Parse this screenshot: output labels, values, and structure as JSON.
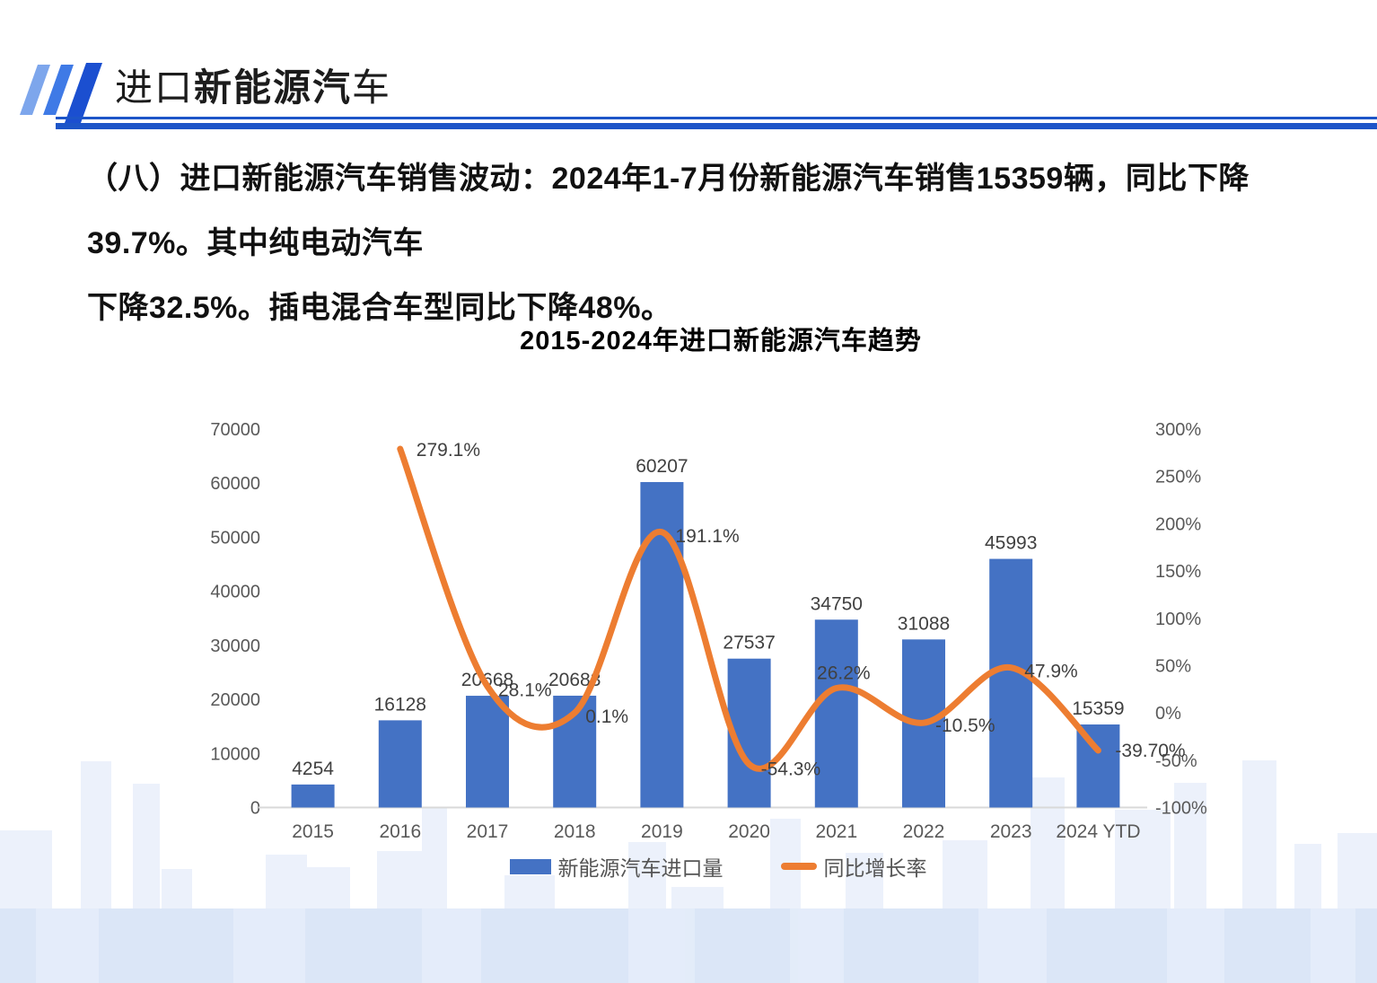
{
  "header": {
    "title_prefix": "进口",
    "title_bold": "新能源汽",
    "title_suffix": "车"
  },
  "body": {
    "line1": "（八）进口新能源汽车销售波动：2024年1-7月份新能源汽车销售15359辆，同比下降39.7%。其中纯电动汽车",
    "line2": "下降32.5%。插电混合车型同比下降48%。"
  },
  "chart_data": {
    "type": "bar",
    "subtype": "combo-bar-line",
    "title": "2015-2024年进口新能源汽车趋势",
    "categories": [
      "2015",
      "2016",
      "2017",
      "2018",
      "2019",
      "2020",
      "2021",
      "2022",
      "2023",
      "2024 YTD"
    ],
    "series": [
      {
        "name": "新能源汽车进口量",
        "type": "bar",
        "axis": "left",
        "color": "#4472C4",
        "values": [
          4254,
          16128,
          20668,
          20683,
          60207,
          27537,
          34750,
          31088,
          45993,
          15359
        ],
        "labels": [
          "4254",
          "16128",
          "20668",
          "20683",
          "60207",
          "27537",
          "34750",
          "31088",
          "45993",
          "15359"
        ]
      },
      {
        "name": "同比增长率",
        "type": "line",
        "axis": "right",
        "color": "#ED7D31",
        "values": [
          null,
          279.1,
          28.1,
          0.1,
          191.1,
          -54.3,
          26.2,
          -10.5,
          47.9,
          -39.7
        ],
        "labels": [
          null,
          "279.1%",
          "28.1%",
          "0.1%",
          "191.1%",
          "-54.3%",
          "26.2%",
          "-10.5%",
          "47.9%",
          "-39.70%"
        ]
      }
    ],
    "left_axis": {
      "min": 0,
      "max": 70000,
      "step": 10000,
      "tick_values": [
        0,
        10000,
        20000,
        30000,
        40000,
        50000,
        60000,
        70000
      ],
      "tick_labels": [
        "0",
        "10000",
        "20000",
        "30000",
        "40000",
        "50000",
        "60000",
        "70000"
      ]
    },
    "right_axis": {
      "min": -100,
      "max": 300,
      "step": 50,
      "tick_values": [
        -100,
        -50,
        0,
        50,
        100,
        150,
        200,
        250,
        300
      ],
      "tick_labels": [
        "-100%",
        "-50%",
        "0%",
        "50%",
        "100%",
        "150%",
        "200%",
        "250%",
        "300%"
      ]
    },
    "legend": [
      {
        "label": "新能源汽车进口量",
        "swatch": "bar",
        "color": "#4472C4"
      },
      {
        "label": "同比增长率",
        "swatch": "line",
        "color": "#ED7D31"
      }
    ],
    "grid": false,
    "legend_position": "bottom",
    "colors": {
      "bar": "#4472C4",
      "line": "#ED7D31",
      "tick_text": "#595959",
      "label_text": "#404040",
      "axis_line": "#D9D9D9"
    }
  }
}
